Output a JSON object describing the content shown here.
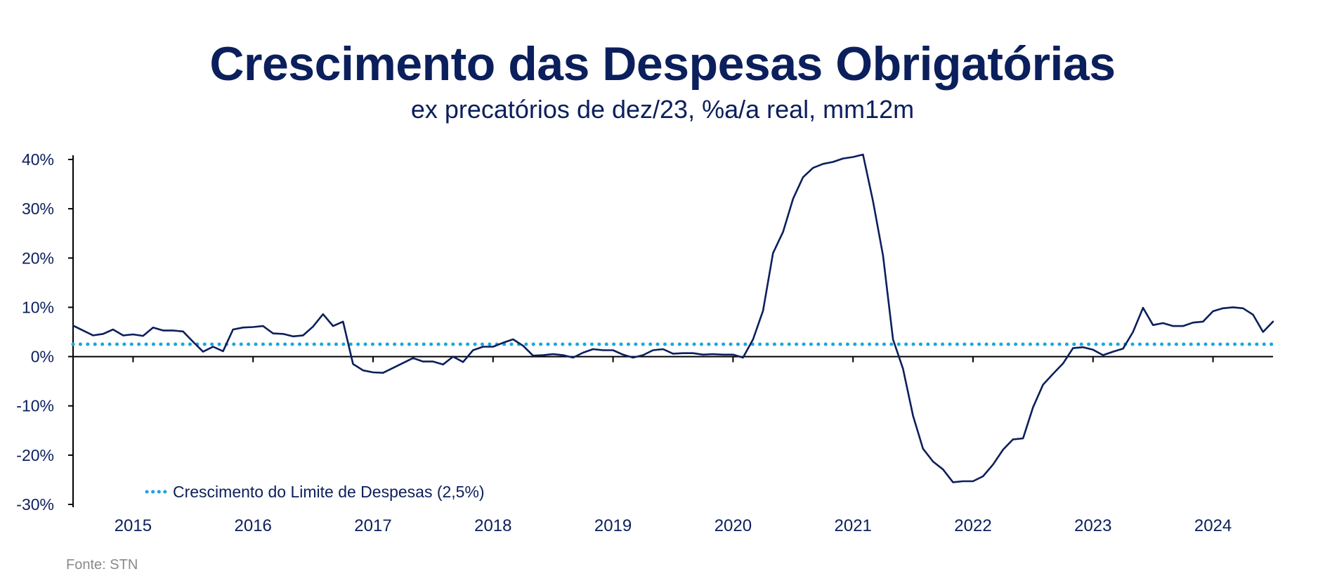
{
  "chart_data": {
    "type": "line",
    "title": "Crescimento das Despesas Obrigatórias",
    "subtitle": "ex precatórios de dez/23, %a/a real, mm12m",
    "source": "Fonte: STN",
    "ylim": [
      -30,
      40
    ],
    "y_ticks": [
      40,
      30,
      20,
      10,
      0,
      -10,
      -20,
      -30
    ],
    "y_tick_labels": [
      "40%",
      "30%",
      "20%",
      "10%",
      "0%",
      "-10%",
      "-20%",
      "-30%"
    ],
    "x_tick_labels": [
      "2015",
      "2016",
      "2017",
      "2018",
      "2019",
      "2020",
      "2021",
      "2022",
      "2023",
      "2024"
    ],
    "grid": false,
    "legend_position": "bottom-left",
    "colors": {
      "series": "#0b1f5c",
      "limit": "#1aa7e0",
      "axis": "#000000"
    },
    "series": [
      {
        "values": [
          6.3,
          5.3,
          4.3,
          4.6,
          5.5,
          4.3,
          4.5,
          4.2,
          5.9,
          5.3,
          5.3,
          5.1,
          3.0,
          1.0,
          2.0,
          1.1,
          5.5,
          5.9,
          6.0,
          6.2,
          4.7,
          4.6,
          4.1,
          4.3,
          6.1,
          8.6,
          6.2,
          7.1,
          -1.5,
          -2.8,
          -3.2,
          -3.3,
          -2.3,
          -1.3,
          -0.3,
          -1.0,
          -1.0,
          -1.6,
          0.0,
          -1.1,
          1.3,
          2.0,
          2.0,
          2.8,
          3.5,
          2.2,
          0.2,
          0.3,
          0.5,
          0.3,
          -0.2,
          0.8,
          1.5,
          1.3,
          1.3,
          0.4,
          -0.2,
          0.3,
          1.3,
          1.5,
          0.6,
          0.7,
          0.7,
          0.4,
          0.5,
          0.4,
          0.4,
          -0.2,
          3.5,
          9.3,
          21.0,
          25.3,
          32.0,
          36.4,
          38.3,
          39.1,
          39.5,
          40.2,
          40.5,
          41.0,
          31.5,
          20.5,
          3.5,
          -2.5,
          -12.0,
          -18.7,
          -21.3,
          -22.9,
          -25.5,
          -25.3,
          -25.3,
          -24.3,
          -21.9,
          -18.9,
          -16.8,
          -16.6,
          -10.3,
          -5.7,
          -3.5,
          -1.4,
          1.7,
          1.9,
          1.4,
          0.3,
          1.0,
          1.6,
          5.0,
          9.9,
          6.4,
          6.8,
          6.2,
          6.2,
          6.9,
          7.1,
          9.2,
          9.8,
          10.0,
          9.8,
          8.5,
          5.0,
          7.1
        ]
      },
      {
        "name": "Crescimento do Limite de Despesas (2,5%)",
        "values": [
          2.5,
          2.5
        ]
      }
    ]
  }
}
